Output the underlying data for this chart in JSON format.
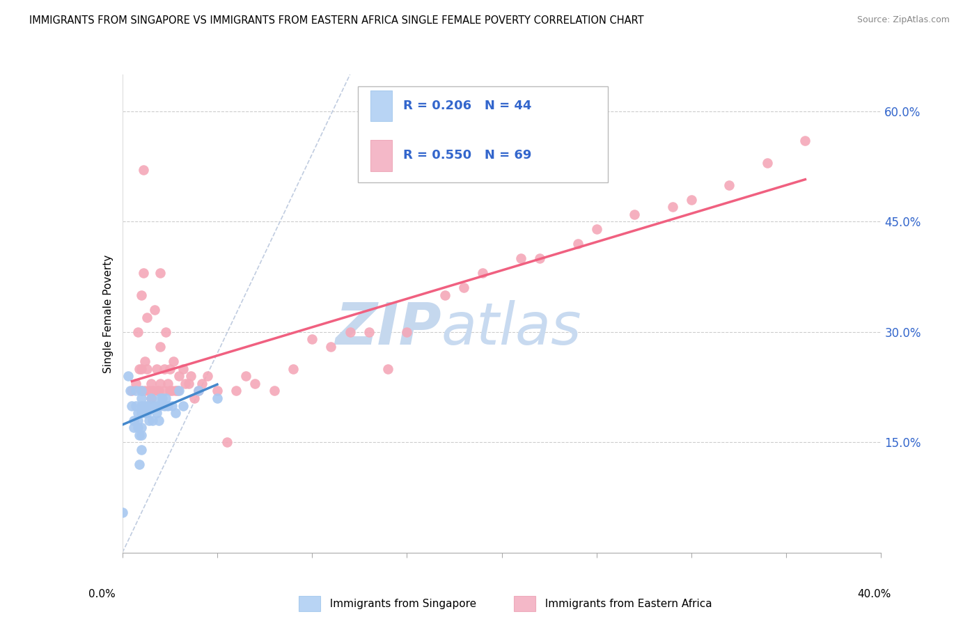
{
  "title": "IMMIGRANTS FROM SINGAPORE VS IMMIGRANTS FROM EASTERN AFRICA SINGLE FEMALE POVERTY CORRELATION CHART",
  "source": "Source: ZipAtlas.com",
  "ylabel": "Single Female Poverty",
  "xlim": [
    0.0,
    0.4
  ],
  "ylim": [
    0.0,
    0.65
  ],
  "singapore_R": 0.206,
  "singapore_N": 44,
  "eastern_africa_R": 0.55,
  "eastern_africa_N": 69,
  "singapore_color": "#a8c8f0",
  "eastern_africa_color": "#f4a8b8",
  "singapore_line_color": "#4488cc",
  "eastern_africa_line_color": "#f06080",
  "diagonal_color": "#c0cce0",
  "watermark_color": "#ccddf0",
  "legend_box_color_singapore": "#b8d4f4",
  "legend_box_color_eastern_africa": "#f4b8c8",
  "legend_text_color": "#3366cc",
  "singapore_x": [
    0.0,
    0.003,
    0.004,
    0.005,
    0.006,
    0.006,
    0.007,
    0.007,
    0.008,
    0.008,
    0.008,
    0.009,
    0.009,
    0.01,
    0.01,
    0.01,
    0.01,
    0.01,
    0.01,
    0.01,
    0.012,
    0.012,
    0.013,
    0.013,
    0.014,
    0.015,
    0.015,
    0.016,
    0.017,
    0.018,
    0.018,
    0.019,
    0.02,
    0.02,
    0.021,
    0.022,
    0.023,
    0.024,
    0.026,
    0.028,
    0.03,
    0.032,
    0.04,
    0.05
  ],
  "singapore_y": [
    0.055,
    0.24,
    0.22,
    0.2,
    0.18,
    0.17,
    0.22,
    0.2,
    0.19,
    0.18,
    0.17,
    0.16,
    0.12,
    0.22,
    0.21,
    0.2,
    0.19,
    0.17,
    0.16,
    0.14,
    0.2,
    0.19,
    0.2,
    0.19,
    0.18,
    0.21,
    0.2,
    0.18,
    0.2,
    0.2,
    0.19,
    0.18,
    0.21,
    0.2,
    0.21,
    0.2,
    0.21,
    0.2,
    0.2,
    0.19,
    0.22,
    0.2,
    0.22,
    0.21
  ],
  "eastern_africa_x": [
    0.005,
    0.007,
    0.008,
    0.009,
    0.01,
    0.01,
    0.01,
    0.011,
    0.011,
    0.012,
    0.012,
    0.013,
    0.013,
    0.014,
    0.015,
    0.015,
    0.016,
    0.017,
    0.018,
    0.018,
    0.019,
    0.02,
    0.02,
    0.02,
    0.022,
    0.022,
    0.023,
    0.024,
    0.025,
    0.025,
    0.026,
    0.027,
    0.028,
    0.029,
    0.03,
    0.032,
    0.033,
    0.035,
    0.036,
    0.038,
    0.04,
    0.042,
    0.045,
    0.05,
    0.055,
    0.06,
    0.065,
    0.07,
    0.08,
    0.09,
    0.1,
    0.11,
    0.12,
    0.13,
    0.14,
    0.15,
    0.17,
    0.18,
    0.19,
    0.21,
    0.22,
    0.24,
    0.25,
    0.27,
    0.29,
    0.3,
    0.32,
    0.34,
    0.36
  ],
  "eastern_africa_y": [
    0.22,
    0.23,
    0.3,
    0.25,
    0.35,
    0.25,
    0.22,
    0.38,
    0.52,
    0.26,
    0.22,
    0.32,
    0.25,
    0.22,
    0.23,
    0.21,
    0.22,
    0.33,
    0.25,
    0.22,
    0.22,
    0.38,
    0.28,
    0.23,
    0.25,
    0.22,
    0.3,
    0.23,
    0.25,
    0.22,
    0.22,
    0.26,
    0.22,
    0.22,
    0.24,
    0.25,
    0.23,
    0.23,
    0.24,
    0.21,
    0.22,
    0.23,
    0.24,
    0.22,
    0.15,
    0.22,
    0.24,
    0.23,
    0.22,
    0.25,
    0.29,
    0.28,
    0.3,
    0.3,
    0.25,
    0.3,
    0.35,
    0.36,
    0.38,
    0.4,
    0.4,
    0.42,
    0.44,
    0.46,
    0.47,
    0.48,
    0.5,
    0.53,
    0.56
  ],
  "y_ticks": [
    0.15,
    0.3,
    0.45,
    0.6
  ],
  "y_tick_labels": [
    "15.0%",
    "30.0%",
    "45.0%",
    "60.0%"
  ]
}
